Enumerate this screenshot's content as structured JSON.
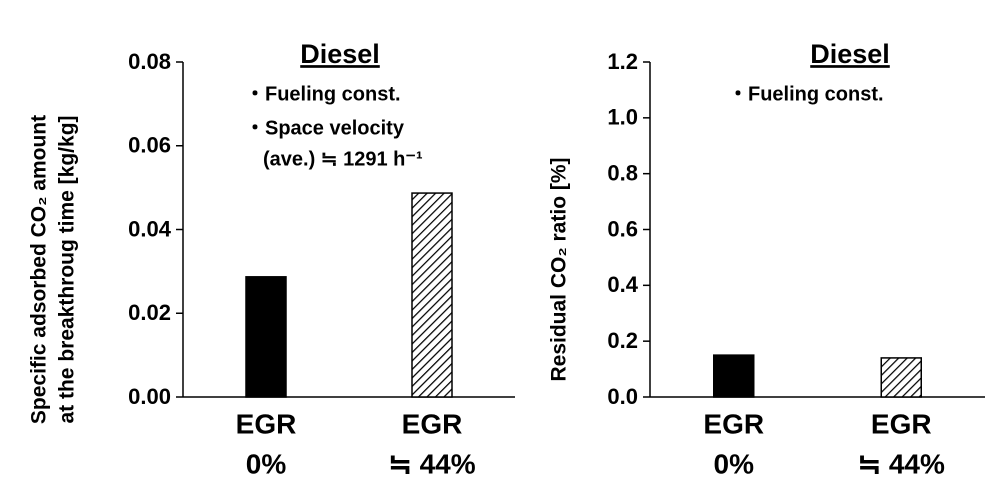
{
  "chart_data": [
    {
      "type": "bar",
      "title": "Diesel",
      "y_label": [
        "Specific adsorbed CO₂ amount",
        "at the breakthroug time [kg/kg]"
      ],
      "annotations": [
        "・Fueling const.",
        "・Space velocity",
        "(ave.) ≒ 1291 h⁻¹"
      ],
      "categories": [
        [
          "EGR",
          "0%"
        ],
        [
          "EGR",
          "≒ 44%"
        ]
      ],
      "values": [
        0.0287,
        0.0487
      ],
      "color": "#000000",
      "hatched": [
        false,
        true
      ],
      "ylim": [
        0,
        0.08
      ],
      "yticks": [
        {
          "value": 0,
          "label": "0.00"
        },
        0.02,
        0.04,
        0.06,
        0.08
      ],
      "grid": false
    },
    {
      "type": "bar",
      "title": "Diesel",
      "y_label": [
        "Residual CO₂ ratio [%]"
      ],
      "annotations": [
        "・Fueling const."
      ],
      "categories": [
        [
          "EGR",
          "0%"
        ],
        [
          "EGR",
          "≒ 44%"
        ]
      ],
      "values": [
        0.15,
        0.14
      ],
      "color": "#000000",
      "hatched": [
        false,
        true
      ],
      "ylim": [
        0,
        1.2
      ],
      "yticks": [
        {
          "value": 0,
          "label": "0.0"
        },
        0.2,
        0.4,
        0.6,
        0.8,
        {
          "value": 1,
          "label": "1.0"
        },
        1.2
      ],
      "grid": false
    }
  ]
}
